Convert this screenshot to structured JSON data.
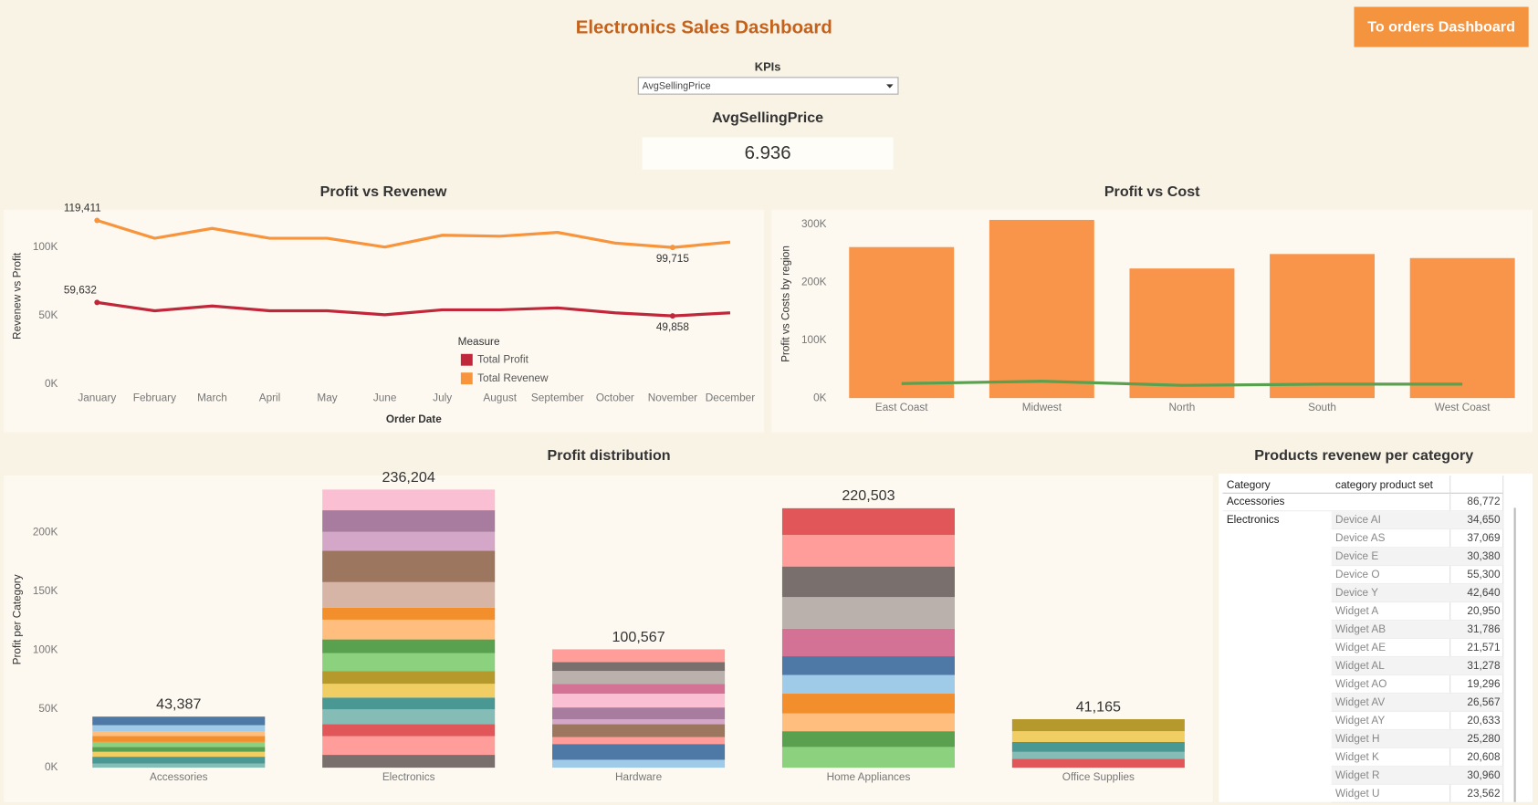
{
  "header": {
    "title": "Electronics Sales Dashboard",
    "button": "To orders Dashboard"
  },
  "kpi": {
    "label": "KPIs",
    "selected": "AvgSellingPrice",
    "name": "AvgSellingPrice",
    "value": 6.936
  },
  "chart_data": [
    {
      "type": "line",
      "title": "Profit vs Revenew",
      "x_label": "Order Date",
      "y_label": "Revenew vs Profit",
      "categories": [
        "January",
        "February",
        "March",
        "April",
        "May",
        "June",
        "July",
        "August",
        "September",
        "October",
        "November",
        "December"
      ],
      "series": [
        {
          "name": "Total Profit",
          "color": "#c1273a",
          "values": [
            59632,
            53600,
            57100,
            53600,
            53600,
            50700,
            54300,
            54300,
            55700,
            52100,
            49858,
            52100
          ],
          "value_labels": [
            "59,632",
            null,
            null,
            null,
            null,
            null,
            null,
            null,
            null,
            null,
            "49,858",
            null
          ]
        },
        {
          "name": "Total Revenew",
          "color": "#f7943c",
          "values": [
            119411,
            106400,
            113600,
            106400,
            106400,
            100000,
            108600,
            107900,
            110700,
            102900,
            99715,
            103600
          ],
          "value_labels": [
            "119,411",
            null,
            null,
            null,
            null,
            null,
            null,
            null,
            null,
            null,
            "99,715",
            null
          ]
        }
      ],
      "legend_title": "Measure",
      "legend": "center",
      "grid": false,
      "ylim": [
        0,
        128000
      ],
      "yticks": [
        {
          "value": 0,
          "label": "0K"
        },
        {
          "value": 50000,
          "label": "50K"
        },
        {
          "value": 100000,
          "label": "100K"
        }
      ]
    },
    {
      "type": "bar",
      "title": "Profit vs Cost",
      "y_label": "Profit vs Costs by region",
      "categories": [
        "East Coast",
        "Midwest",
        "North",
        "South",
        "West Coast"
      ],
      "series": [
        {
          "color": "#f9954a",
          "values": [
            261000,
            308000,
            224000,
            249000,
            242000
          ]
        },
        {
          "type": "line",
          "color": "#59a14f",
          "values": [
            25000,
            29000,
            22000,
            24000,
            24000
          ]
        }
      ],
      "grid": false,
      "ylim": [
        0,
        325000
      ],
      "yticks": [
        {
          "value": 0,
          "label": "0K"
        },
        {
          "value": 100000,
          "label": "100K"
        },
        {
          "value": 200000,
          "label": "200K"
        },
        {
          "value": 300000,
          "label": "300K"
        }
      ]
    },
    {
      "type": "stacked_bar",
      "title": "Profit distribution",
      "y_label": "Profit per Category",
      "categories": [
        "Accessories",
        "Electronics",
        "Hardware",
        "Home Appliances",
        "Office Supplies"
      ],
      "segments": [
        {
          "values": [
            3400,
            5900,
            4200,
            4200,
            4200,
            5000,
            4200,
            5000,
            7300
          ],
          "colors": [
            "#86bcb6",
            "#499894",
            "#f1ce63",
            "#59a14f",
            "#8cd17d",
            "#f28e2b",
            "#ffbe7d",
            "#a0cbe8",
            "#4e79a7"
          ]
        },
        {
          "values": [
            10900,
            15900,
            10100,
            12600,
            10100,
            11700,
            10900,
            15100,
            11700,
            16800,
            10100,
            21800,
            26800,
            15900,
            18400,
            17600
          ],
          "colors": [
            "#79706e",
            "#ff9d9a",
            "#e15759",
            "#86bcb6",
            "#499894",
            "#f1ce63",
            "#b6992d",
            "#8cd17d",
            "#59a14f",
            "#ffbe7d",
            "#f28e2b",
            "#d7b5a6",
            "#9d7660",
            "#d4a6c8",
            "#a87c9f",
            "#fabfd2"
          ]
        },
        {
          "values": [
            6700,
            13400,
            5900,
            10900,
            4200,
            10100,
            11700,
            8400,
            10900,
            7500,
            10900
          ],
          "colors": [
            "#a0cbe8",
            "#4e79a7",
            "#ff9d9a",
            "#9d7660",
            "#d4a6c8",
            "#a87c9f",
            "#fabfd2",
            "#d37295",
            "#bab0ac",
            "#79706e",
            "#ff9d9a"
          ]
        },
        {
          "values": [
            17600,
            13400,
            15100,
            16800,
            15900,
            15900,
            23500,
            26800,
            26000,
            26800,
            22700
          ],
          "colors": [
            "#8cd17d",
            "#59a14f",
            "#ffbe7d",
            "#f28e2b",
            "#a0cbe8",
            "#4e79a7",
            "#d37295",
            "#bab0ac",
            "#79706e",
            "#ff9d9a",
            "#e15759"
          ]
        },
        {
          "values": [
            7500,
            5900,
            8400,
            9200,
            10200
          ],
          "colors": [
            "#e15759",
            "#86bcb6",
            "#499894",
            "#f1ce63",
            "#b6992d"
          ]
        }
      ],
      "totals": [
        43387,
        236204,
        100567,
        220503,
        41165
      ],
      "total_labels": [
        "43,387",
        "236,204",
        "100,567",
        "220,503",
        "41,165"
      ],
      "grid": false,
      "ylim": [
        0,
        245000
      ],
      "yticks": [
        {
          "value": 0,
          "label": "0K"
        },
        {
          "value": 50000,
          "label": "50K"
        },
        {
          "value": 100000,
          "label": "100K"
        },
        {
          "value": 150000,
          "label": "150K"
        },
        {
          "value": 200000,
          "label": "200K"
        }
      ]
    }
  ],
  "table": {
    "title": "Products revenew per category",
    "columns": [
      "Category",
      "category product set"
    ],
    "rows": [
      {
        "category": "Accessories",
        "value": "86,772"
      },
      {
        "category": "Electronics",
        "product": "Device AI",
        "value": "34,650"
      },
      {
        "product": "Device AS",
        "value": "37,069"
      },
      {
        "product": "Device E",
        "value": "30,380"
      },
      {
        "product": "Device O",
        "value": "55,300"
      },
      {
        "product": "Device Y",
        "value": "42,640"
      },
      {
        "product": "Widget A",
        "value": "20,950"
      },
      {
        "product": "Widget AB",
        "value": "31,786"
      },
      {
        "product": "Widget AE",
        "value": "21,571"
      },
      {
        "product": "Widget AL",
        "value": "31,278"
      },
      {
        "product": "Widget AO",
        "value": "19,296"
      },
      {
        "product": "Widget AV",
        "value": "26,567"
      },
      {
        "product": "Widget AY",
        "value": "20,633"
      },
      {
        "product": "Widget H",
        "value": "25,280"
      },
      {
        "product": "Widget K",
        "value": "20,608"
      },
      {
        "product": "Widget R",
        "value": "30,960"
      },
      {
        "product": "Widget U",
        "value": "23,562"
      }
    ]
  }
}
